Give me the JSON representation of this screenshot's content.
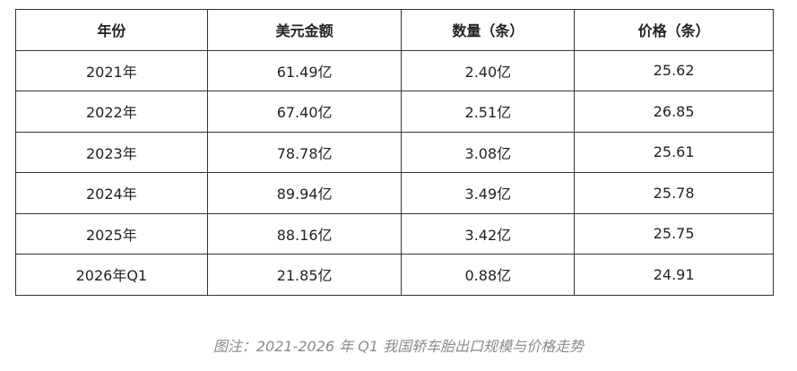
{
  "table": {
    "header": [
      "年份",
      "美元金额",
      "数量（条）",
      "价格（条）"
    ],
    "rows": [
      [
        "2021年",
        "61.49亿",
        "2.40亿",
        "25.62"
      ],
      [
        "2022年",
        "67.40亿",
        "2.51亿",
        "26.85"
      ],
      [
        "2023年",
        "78.78亿",
        "3.08亿",
        "25.61"
      ],
      [
        "2024年",
        "89.94亿",
        "3.49亿",
        "25.78"
      ],
      [
        "2025年",
        "88.16亿",
        "3.42亿",
        "25.75"
      ],
      [
        "2026年Q1",
        "21.85亿",
        "0.88亿",
        "24.91"
      ]
    ]
  },
  "caption": "图注：2021-2026 年 Q1 我国轿车胎出口规模与价格走势"
}
